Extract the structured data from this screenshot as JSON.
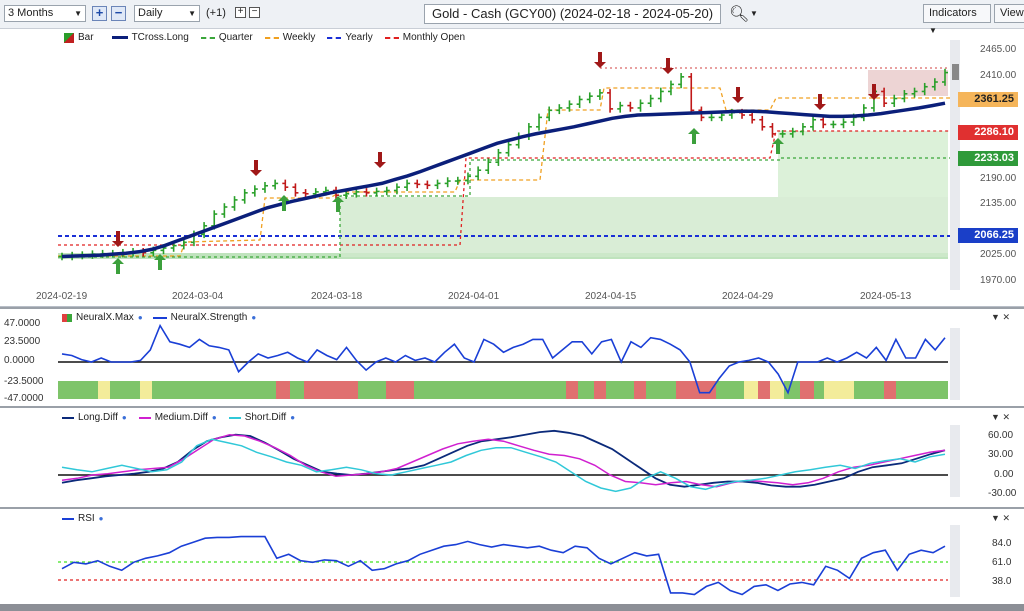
{
  "toolbar": {
    "period": "3 Months",
    "interval": "Daily",
    "step": "(+1)",
    "title": "Gold - Cash (GCY00) (2024-02-18 - 2024-05-20)",
    "indicators_label": "Indicators",
    "view_label": "View"
  },
  "main_panel": {
    "legend": [
      "Bar",
      "TCross.Long",
      "Quarter",
      "Weekly",
      "Yearly",
      "Monthly Open"
    ],
    "y_labels": [
      "2465.00",
      "2410.00",
      "2190.00",
      "2135.00",
      "2025.00",
      "1970.00"
    ],
    "price_tags": {
      "weekly": "2361.25",
      "monthly_open": "2286.10",
      "quarter": "2233.03",
      "yearly": "2066.25"
    },
    "x_labels": [
      "2024-02-19",
      "2024-03-04",
      "2024-03-18",
      "2024-04-01",
      "2024-04-15",
      "2024-04-29",
      "2024-05-13"
    ]
  },
  "neuralx_panel": {
    "legend": [
      "NeuralX.Max",
      "NeuralX.Strength"
    ],
    "y_labels": [
      "47.0000",
      "23.5000",
      "0.0000",
      "-23.5000",
      "-47.0000"
    ]
  },
  "diff_panel": {
    "legend": [
      "Long.Diff",
      "Medium.Diff",
      "Short.Diff"
    ],
    "y_labels": [
      "60.00",
      "30.00",
      "0.00",
      "-30.00"
    ]
  },
  "rsi_panel": {
    "legend": [
      "RSI"
    ],
    "y_labels": [
      "84.0",
      "61.0",
      "38.0"
    ]
  },
  "chart_data": {
    "type": "line",
    "title": "Gold - Cash (GCY00) (2024-02-18 - 2024-05-20)",
    "x_ticks": [
      "2024-02-19",
      "2024-03-04",
      "2024-03-18",
      "2024-04-01",
      "2024-04-15",
      "2024-04-29",
      "2024-05-13"
    ],
    "y_ticks": [
      1970,
      2025,
      2080,
      2135,
      2190,
      2245,
      2300,
      2355,
      2410,
      2465
    ],
    "close": [
      2025,
      2027,
      2028,
      2030,
      2031,
      2031,
      2033,
      2035,
      2033,
      2038,
      2043,
      2048,
      2055,
      2072,
      2090,
      2115,
      2130,
      2145,
      2160,
      2168,
      2175,
      2180,
      2172,
      2160,
      2158,
      2162,
      2165,
      2155,
      2158,
      2162,
      2160,
      2163,
      2165,
      2172,
      2180,
      2178,
      2176,
      2180,
      2185,
      2186,
      2195,
      2208,
      2225,
      2245,
      2262,
      2280,
      2300,
      2320,
      2335,
      2340,
      2348,
      2358,
      2365,
      2372,
      2338,
      2345,
      2340,
      2350,
      2360,
      2375,
      2390,
      2406,
      2335,
      2320,
      2320,
      2325,
      2330,
      2325,
      2315,
      2300,
      2285,
      2285,
      2290,
      2300,
      2315,
      2305,
      2305,
      2310,
      2320,
      2340,
      2375,
      2350,
      2360,
      2370,
      2375,
      2385,
      2395,
      2415
    ],
    "tcross_long": [
      2025,
      2026,
      2027,
      2028,
      2030,
      2032,
      2035,
      2040,
      2048,
      2058,
      2068,
      2078,
      2088,
      2098,
      2108,
      2118,
      2128,
      2135,
      2142,
      2148,
      2154,
      2160,
      2165,
      2170,
      2175,
      2180,
      2188,
      2196,
      2205,
      2215,
      2225,
      2235,
      2245,
      2255,
      2265,
      2272,
      2279,
      2285,
      2290,
      2295,
      2300,
      2306,
      2312,
      2318,
      2322,
      2325,
      2326,
      2327,
      2328,
      2329,
      2330,
      2331,
      2332,
      2333,
      2333,
      2332,
      2330,
      2328,
      2326,
      2324,
      2322,
      2322,
      2323,
      2325,
      2328,
      2332,
      2336,
      2340,
      2345,
      2350
    ],
    "weekly_level": 2361.25,
    "monthly_open": 2286.1,
    "quarter_level": 2233.03,
    "yearly_level": 2066.25,
    "neuralx_strength": [
      10,
      8,
      3,
      0,
      5,
      0,
      0,
      0,
      2,
      15,
      45,
      25,
      22,
      18,
      28,
      20,
      18,
      15,
      -12,
      0,
      10,
      5,
      8,
      12,
      5,
      0,
      15,
      8,
      3,
      18,
      2,
      -10,
      0,
      5,
      0,
      8,
      2,
      5,
      0,
      12,
      22,
      5,
      0,
      28,
      22,
      12,
      18,
      22,
      28,
      28,
      5,
      15,
      25,
      25,
      10,
      25,
      28,
      0,
      25,
      18,
      30,
      28,
      22,
      15,
      0,
      -38,
      -38,
      -20,
      -5,
      0,
      2,
      5,
      0,
      -15,
      -38,
      0,
      0,
      0,
      5,
      0,
      5,
      12,
      5,
      18,
      2,
      28,
      5,
      5,
      28,
      15,
      30
    ],
    "rsi": [
      52,
      60,
      58,
      62,
      55,
      50,
      60,
      65,
      68,
      72,
      80,
      85,
      90,
      91,
      91,
      92,
      92,
      92,
      65,
      70,
      62,
      60,
      63,
      62,
      55,
      62,
      50,
      52,
      58,
      62,
      70,
      75,
      80,
      82,
      86,
      82,
      79,
      82,
      80,
      78,
      80,
      75,
      72,
      80,
      78,
      65,
      58,
      65,
      72,
      68,
      70,
      22,
      22,
      20,
      30,
      35,
      25,
      20,
      30,
      32,
      25,
      33,
      35,
      32,
      55,
      50,
      40,
      65,
      72,
      75,
      50,
      70,
      75,
      72,
      80
    ]
  }
}
